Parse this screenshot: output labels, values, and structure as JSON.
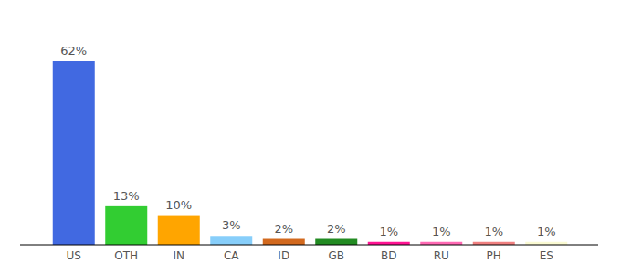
{
  "chart_data": {
    "type": "bar",
    "categories": [
      "US",
      "OTH",
      "IN",
      "CA",
      "ID",
      "GB",
      "BD",
      "RU",
      "PH",
      "ES"
    ],
    "values": [
      62,
      13,
      10,
      3,
      2,
      2,
      1,
      1,
      1,
      1
    ],
    "value_labels": [
      "62%",
      "13%",
      "10%",
      "3%",
      "2%",
      "2%",
      "1%",
      "1%",
      "1%",
      "1%"
    ],
    "colors": [
      "#4169e1",
      "#32cd32",
      "#ffa500",
      "#87cefa",
      "#d2691e",
      "#228b22",
      "#ff1493",
      "#ff69b4",
      "#f08080",
      "#fafad2"
    ],
    "ylim": [
      0,
      62
    ],
    "data_labels": true,
    "tick_labels": "x",
    "grid": false
  }
}
